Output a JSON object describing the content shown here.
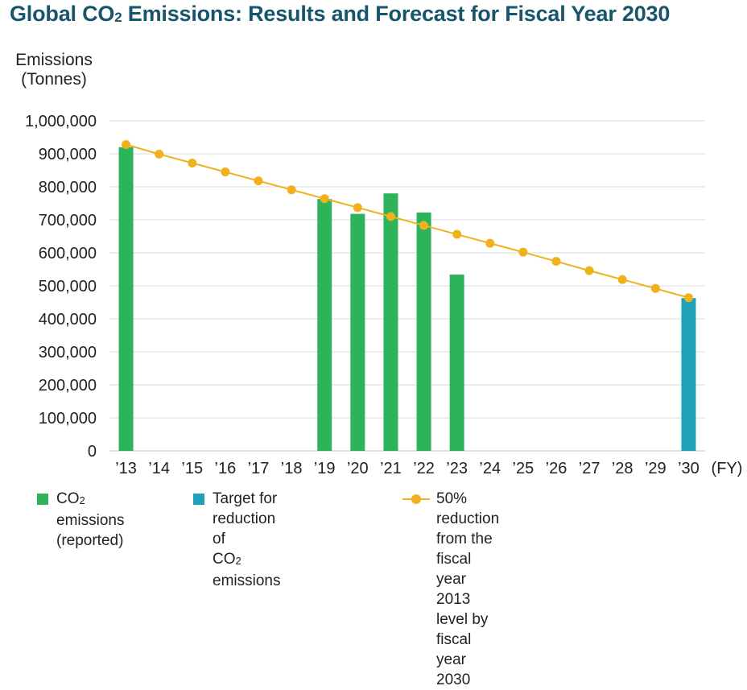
{
  "title_main": "Global CO",
  "title_sub": "2",
  "title_rest": " Emissions: Results and Forecast for Fiscal Year 2030",
  "ylabel_line1": "Emissions",
  "ylabel_line2": "(Tonnes)",
  "x_unit": "(FY)",
  "colors": {
    "reported": "#2db35a",
    "target": "#1da2b8",
    "reduction_line": "#f0b21c",
    "title": "#17556b",
    "grid": "#d9d9d9"
  },
  "legend": {
    "reported_a": "CO",
    "reported_sub": "2",
    "reported_b": " emissions\n(reported)",
    "target_a": "Target for reduction of\nCO",
    "target_sub": "2",
    "target_b": " emissions",
    "line_label": "50% reduction from the fiscal year\n2013 level by fiscal year 2030"
  },
  "chart_data": {
    "type": "bar",
    "categories": [
      "’13",
      "’14",
      "’15",
      "’16",
      "’17",
      "’18",
      "’19",
      "’20",
      "’21",
      "’22",
      "’23",
      "’24",
      "’25",
      "’26",
      "’27",
      "’28",
      "’29",
      "’30"
    ],
    "y_ticks": [
      "0",
      "100,000",
      "200,000",
      "300,000",
      "400,000",
      "500,000",
      "600,000",
      "700,000",
      "800,000",
      "900,000",
      "1,000,000"
    ],
    "ylim": [
      0,
      1000000
    ],
    "grid": true,
    "legend_position": "bottom",
    "series": [
      {
        "name": "CO2 emissions (reported)",
        "kind": "bar",
        "values": [
          920000,
          null,
          null,
          null,
          null,
          null,
          763000,
          718000,
          780000,
          722000,
          534000,
          null,
          null,
          null,
          null,
          null,
          null,
          null
        ]
      },
      {
        "name": "Target for reduction of CO2 emissions",
        "kind": "bar",
        "values": [
          null,
          null,
          null,
          null,
          null,
          null,
          null,
          null,
          null,
          null,
          null,
          null,
          null,
          null,
          null,
          null,
          null,
          463000
        ]
      },
      {
        "name": "50% reduction from the fiscal year 2013 level by fiscal year 2030",
        "kind": "line",
        "values": [
          928000,
          899000,
          872000,
          845000,
          818000,
          791000,
          764000,
          737000,
          710000,
          683000,
          656000,
          629000,
          602000,
          574000,
          546000,
          519000,
          492000,
          464000
        ]
      }
    ]
  }
}
